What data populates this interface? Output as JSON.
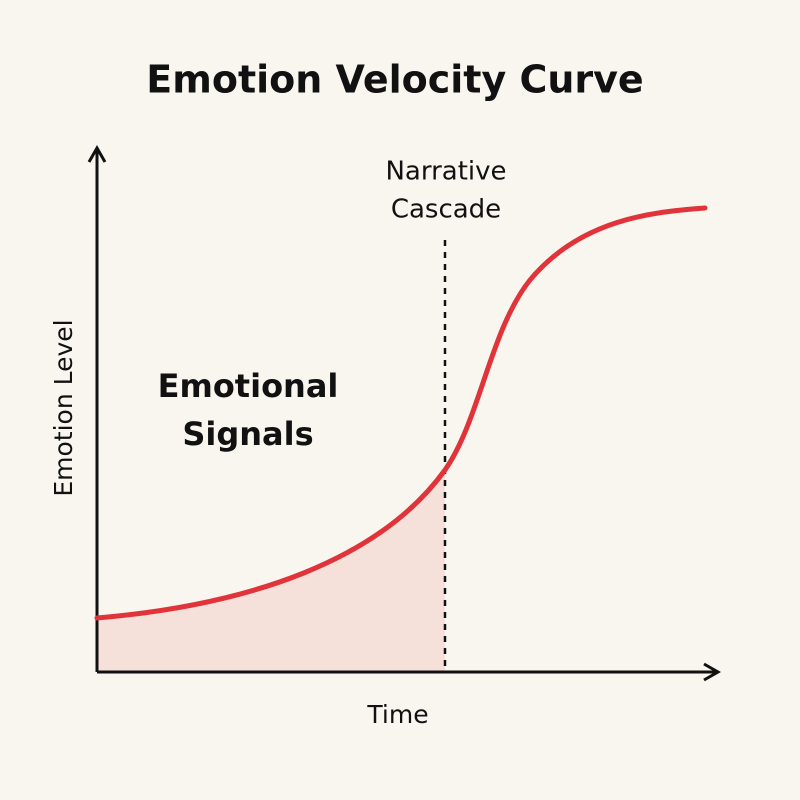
{
  "title": "Emotion Velocity Curve",
  "axes": {
    "y_label": "Emotion Level",
    "x_label": "Time"
  },
  "annotations": {
    "marker_label": {
      "line1": "Narrative",
      "line2": "Cascade"
    },
    "region_label": {
      "line1": "Emotional",
      "line2": "Signals"
    }
  }
}
